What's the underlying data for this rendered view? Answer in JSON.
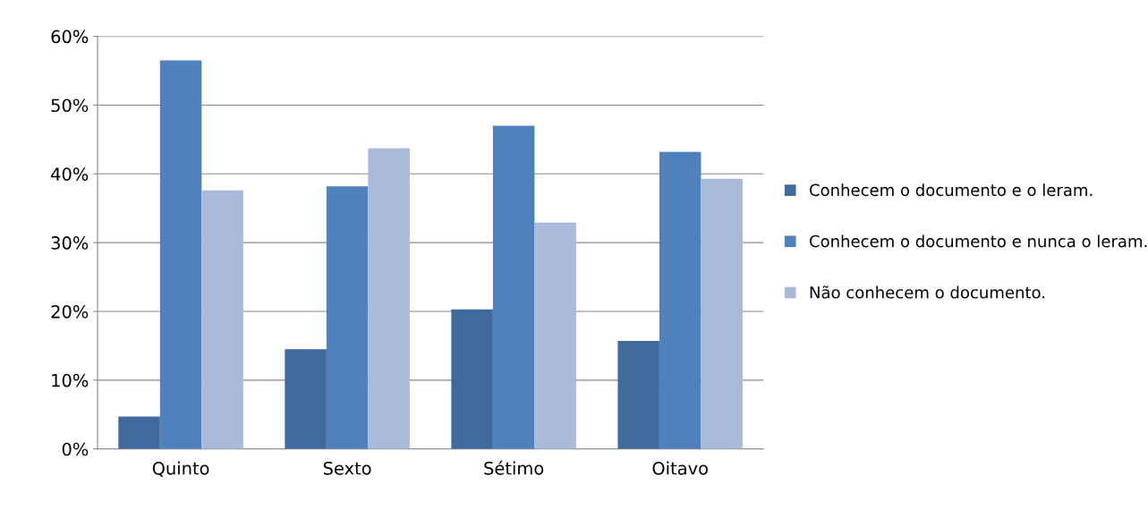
{
  "chart_data": {
    "type": "bar",
    "categories": [
      "Quinto",
      "Sexto",
      "Sétimo",
      "Oitavo"
    ],
    "series": [
      {
        "name": "Conhecem o documento e o leram.",
        "color": "#3f6a9c",
        "values": [
          4.7,
          14.5,
          20.3,
          15.7
        ]
      },
      {
        "name": "Conhecem o documento e nunca o leram.",
        "color": "#4f81bd",
        "values": [
          56.5,
          38.2,
          47.0,
          43.2
        ]
      },
      {
        "name": "Não conhecem o documento.",
        "color": "#a9bad8",
        "values": [
          37.6,
          43.7,
          32.9,
          39.3
        ]
      }
    ],
    "ylim": [
      0,
      60
    ],
    "yticks": [
      {
        "value": 0,
        "label": "0%"
      },
      {
        "value": 10,
        "label": "10%"
      },
      {
        "value": 20,
        "label": "20%"
      },
      {
        "value": 30,
        "label": "30%"
      },
      {
        "value": 40,
        "label": "40%"
      },
      {
        "value": 50,
        "label": "50%"
      },
      {
        "value": 60,
        "label": "60%"
      }
    ],
    "grid": "y",
    "legend": "right"
  }
}
